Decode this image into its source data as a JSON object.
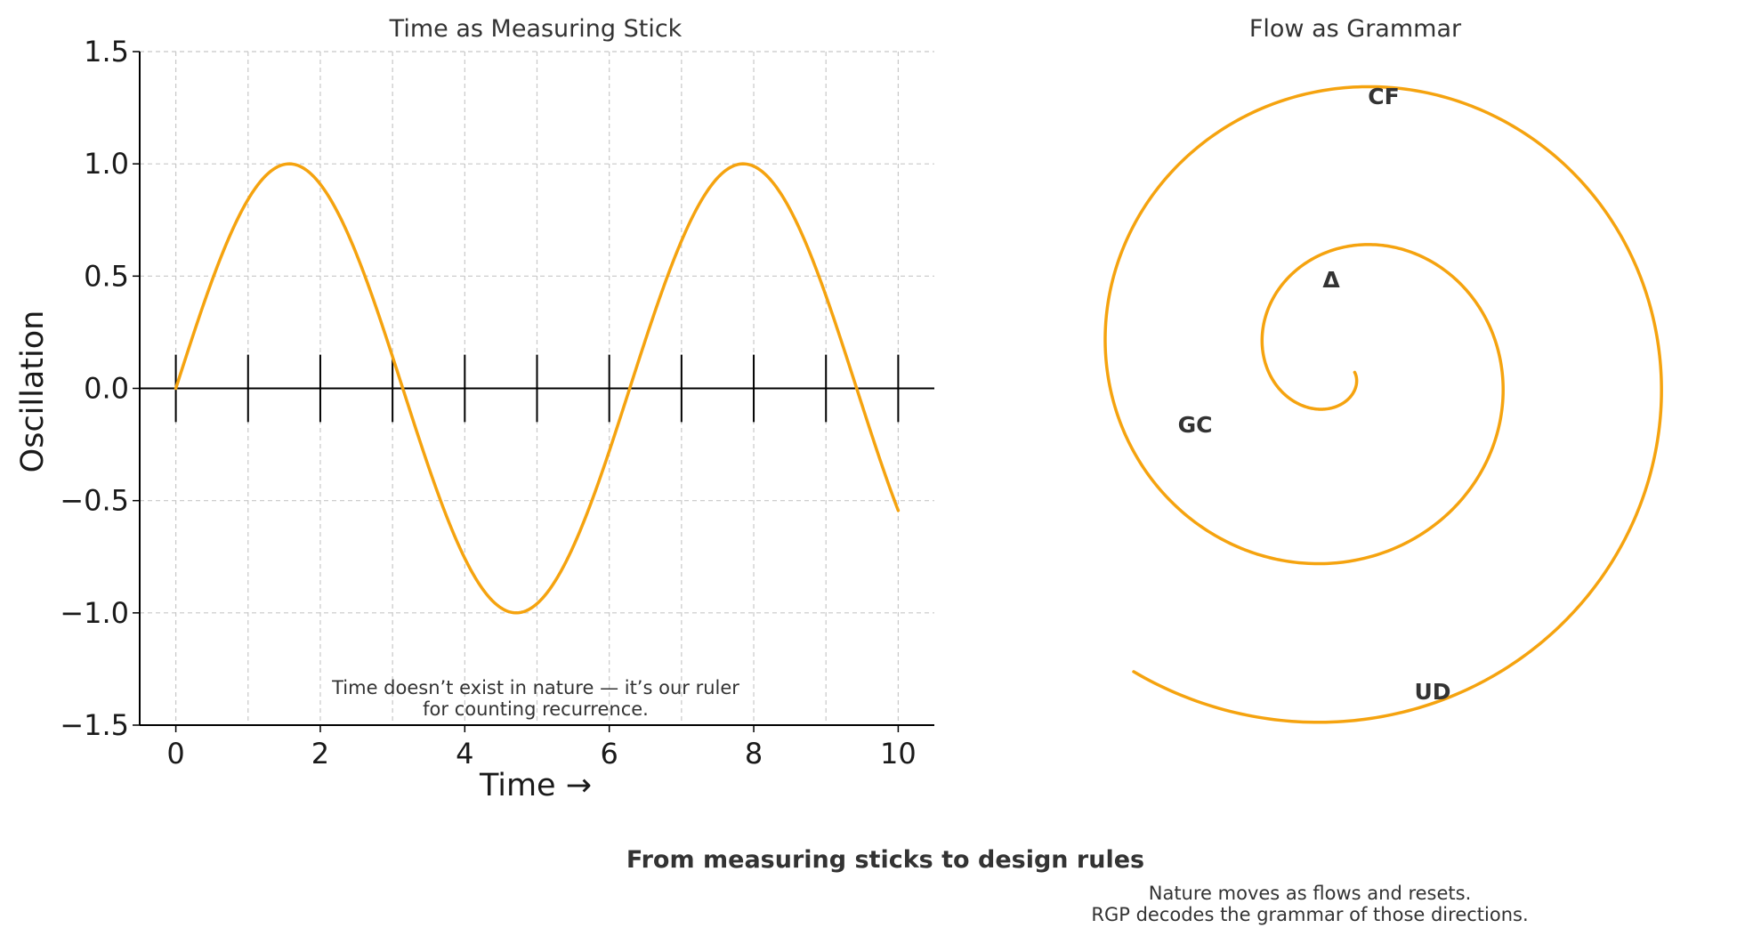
{
  "figure": {
    "suptitle": "From measuring sticks to design rules",
    "footnote": [
      "Nature moves as flows and resets.",
      "RGP decodes the grammar of those directions."
    ]
  },
  "colors": {
    "curve": "#f5a30f",
    "grid": "#c8c8c8",
    "axis": "#000000",
    "text": "#333333"
  },
  "chart_data": [
    {
      "type": "line",
      "title": "Time as Measuring Stick",
      "xlabel": "Time →",
      "ylabel": "Oscillation",
      "xlim": [
        -0.5,
        10.5
      ],
      "ylim": [
        -1.5,
        1.5
      ],
      "xticks": [
        0,
        2,
        4,
        6,
        8,
        10
      ],
      "yticks": [
        1.5,
        1.0,
        0.5,
        0.0,
        -0.5,
        -1.0,
        -1.5
      ],
      "ytick_labels": [
        "1.5",
        "1.0",
        "0.5",
        "0.0",
        "−0.5",
        "−1.0",
        "−1.5"
      ],
      "grid": true,
      "series": [
        {
          "function": "sin(x)",
          "x_range": [
            0,
            10
          ],
          "color": "#f5a30f"
        }
      ],
      "ruler": {
        "y": 0,
        "tick_positions": [
          0,
          1,
          2,
          3,
          4,
          5,
          6,
          7,
          8,
          9,
          10
        ],
        "tick_half_height": 0.15
      },
      "annotation": [
        "Time doesn’t exist in nature — it’s our ruler",
        "for counting recurrence."
      ]
    },
    {
      "type": "line",
      "title": "Flow as Grammar",
      "series": [
        {
          "shape": "spiral",
          "turns": 2.25,
          "color": "#f5a30f"
        }
      ],
      "labels": [
        {
          "text": "Δ"
        },
        {
          "text": "GC"
        },
        {
          "text": "CF"
        },
        {
          "text": "UD"
        }
      ]
    }
  ]
}
